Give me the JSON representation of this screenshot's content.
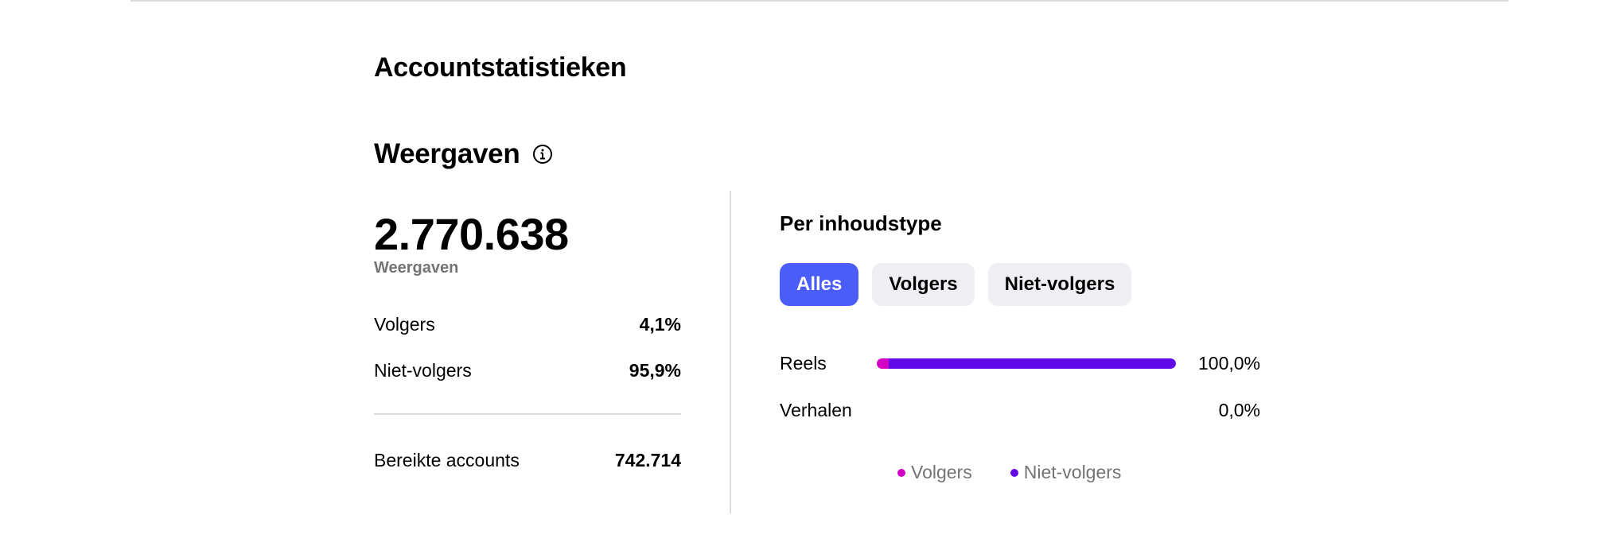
{
  "page": {
    "title": "Accountstatistieken"
  },
  "section": {
    "title": "Weergaven",
    "info_icon": "info-icon"
  },
  "summary": {
    "total_value": "2.770.638",
    "total_label": "Weergaven",
    "rows": [
      {
        "label": "Volgers",
        "value": "4,1%"
      },
      {
        "label": "Niet-volgers",
        "value": "95,9%"
      }
    ],
    "reached": {
      "label": "Bereikte accounts",
      "value": "742.714"
    }
  },
  "breakdown": {
    "title": "Per inhoudstype",
    "chips": [
      {
        "label": "Alles",
        "active": true
      },
      {
        "label": "Volgers",
        "active": false
      },
      {
        "label": "Niet-volgers",
        "active": false
      }
    ],
    "rows": [
      {
        "label": "Reels",
        "percent": "100,0%",
        "fill_fraction": 1.0,
        "followers_share": 0.041
      },
      {
        "label": "Verhalen",
        "percent": "0,0%",
        "fill_fraction": 0.0,
        "followers_share": 0.0
      }
    ],
    "legend": [
      {
        "label": "Volgers",
        "color": "#d300c5"
      },
      {
        "label": "Niet-volgers",
        "color": "#6108e8"
      }
    ]
  },
  "colors": {
    "accent": "#4a5df9",
    "followers": "#d300c5",
    "non_followers": "#6108e8",
    "muted_text": "#737373"
  }
}
